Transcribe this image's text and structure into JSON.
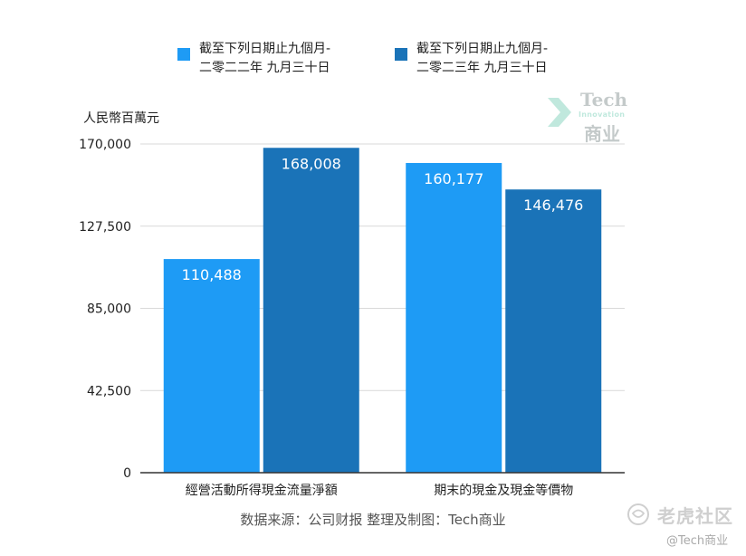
{
  "chart_data": {
    "type": "bar",
    "categories": [
      "經營活動所得現金流量淨額",
      "期末的現金及現金等價物"
    ],
    "series": [
      {
        "name": "截至下列日期止九個月-\n二零二二年 九月三十日",
        "values": [
          110488,
          160177
        ],
        "color": "#1e9bf5"
      },
      {
        "name": "截至下列日期止九個月-\n二零二三年 九月三十日",
        "values": [
          168008,
          146476
        ],
        "color": "#1a73b8"
      }
    ],
    "ylabel": "人民幣百萬元",
    "ylim": [
      0,
      170000
    ],
    "y_ticks": [
      0,
      42500,
      85000,
      127500,
      170000
    ],
    "y_tick_labels": [
      "0",
      "42,500",
      "85,000",
      "127,500",
      "170,000"
    ],
    "value_labels": [
      [
        "110,488",
        "160,177"
      ],
      [
        "168,008",
        "146,476"
      ]
    ],
    "grid": true,
    "legend_position": "top",
    "source_note": "数据来源：公司财报 整理及制图：Tech商业"
  },
  "logo": {
    "line1": "Tech",
    "line2": "Innovation",
    "line3": "商业"
  },
  "watermark": {
    "main": "老虎社区",
    "sub": "@Tech商业",
    "icon": "tiger-icon"
  }
}
